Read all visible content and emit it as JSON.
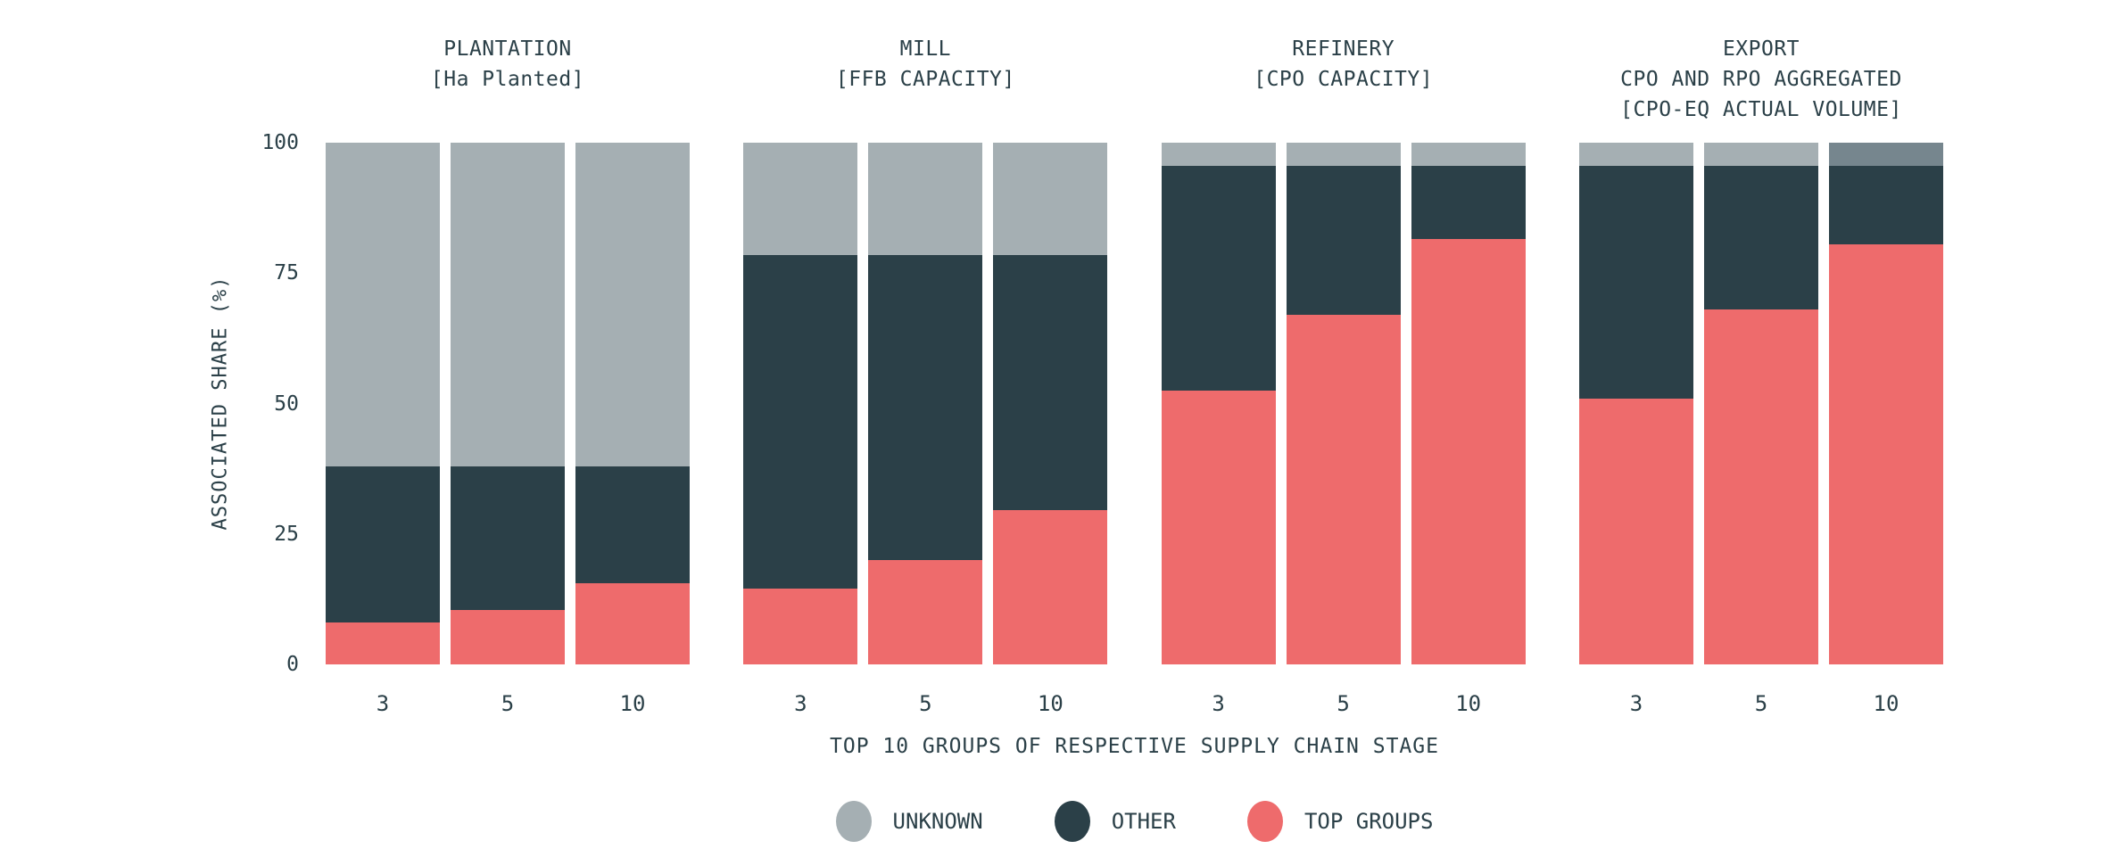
{
  "page": {
    "background": "#FFFFFF",
    "text_color": "#2B4048"
  },
  "colors": {
    "unknown": "#A5AFB3",
    "other": "#2B4048",
    "top_groups": "#EE6B6C",
    "unknown_dark_variant": "#76868E"
  },
  "y_axis": {
    "title": "ASSOCIATED SHARE (%)",
    "ticks": [
      0,
      25,
      50,
      75,
      100
    ],
    "min": 0,
    "max": 100
  },
  "x_axis": {
    "title": "TOP 10 GROUPS OF RESPECTIVE SUPPLY CHAIN STAGE"
  },
  "legend": [
    {
      "label": "UNKNOWN",
      "color": "#A5AFB3"
    },
    {
      "label": "OTHER",
      "color": "#2B4048"
    },
    {
      "label": "TOP GROUPS",
      "color": "#EE6B6C"
    }
  ],
  "chart_data": {
    "type": "bar",
    "stacked": true,
    "grid": false,
    "ylim": [
      0,
      100
    ],
    "ylabel": "ASSOCIATED SHARE (%)",
    "xlabel": "TOP 10 GROUPS OF RESPECTIVE SUPPLY CHAIN STAGE",
    "legend_position": "bottom-center",
    "categories": [
      "3",
      "5",
      "10"
    ],
    "panels": [
      {
        "title_lines": [
          "PLANTATION",
          "[Ha Planted]"
        ],
        "series": [
          {
            "name": "TOP GROUPS",
            "color": "#EE6B6C",
            "values": [
              8,
              10.5,
              15.5
            ]
          },
          {
            "name": "OTHER",
            "color": "#2B4048",
            "values": [
              30,
              27.5,
              22.5
            ]
          },
          {
            "name": "UNKNOWN",
            "color": "#A5AFB3",
            "values": [
              62,
              62,
              62
            ]
          }
        ],
        "color_overrides": []
      },
      {
        "title_lines": [
          "MILL",
          "[FFB CAPACITY]"
        ],
        "series": [
          {
            "name": "TOP GROUPS",
            "color": "#EE6B6C",
            "values": [
              14.5,
              20,
              29.5
            ]
          },
          {
            "name": "OTHER",
            "color": "#2B4048",
            "values": [
              64,
              58.5,
              49
            ]
          },
          {
            "name": "UNKNOWN",
            "color": "#A5AFB3",
            "values": [
              21.5,
              21.5,
              21.5
            ]
          }
        ],
        "color_overrides": []
      },
      {
        "title_lines": [
          "REFINERY",
          "[CPO CAPACITY]"
        ],
        "series": [
          {
            "name": "TOP GROUPS",
            "color": "#EE6B6C",
            "values": [
              52.5,
              67,
              81.5
            ]
          },
          {
            "name": "OTHER",
            "color": "#2B4048",
            "values": [
              43,
              28.5,
              14
            ]
          },
          {
            "name": "UNKNOWN",
            "color": "#A5AFB3",
            "values": [
              4.5,
              4.5,
              4.5
            ]
          }
        ],
        "color_overrides": []
      },
      {
        "title_lines": [
          "EXPORT",
          "CPO AND RPO AGGREGATED",
          "[CPO-EQ ACTUAL VOLUME]"
        ],
        "series": [
          {
            "name": "TOP GROUPS",
            "color": "#EE6B6C",
            "values": [
              51,
              68,
              80.5
            ]
          },
          {
            "name": "OTHER",
            "color": "#2B4048",
            "values": [
              44.5,
              27.5,
              15
            ]
          },
          {
            "name": "UNKNOWN",
            "color": "#A5AFB3",
            "values": [
              4.5,
              4.5,
              4.5
            ]
          }
        ],
        "color_overrides": [
          {
            "series": "UNKNOWN",
            "category_index": 2,
            "color": "#76868E"
          }
        ]
      }
    ]
  }
}
